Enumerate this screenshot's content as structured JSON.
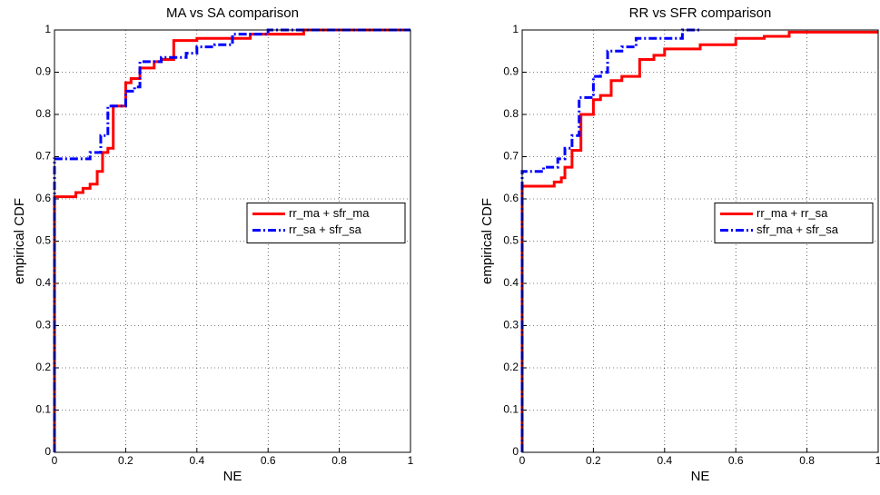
{
  "chart_data": [
    {
      "type": "line",
      "title": "MA vs SA comparison",
      "xlabel": "NE",
      "ylabel": "empirical CDF",
      "xlim": [
        0,
        1
      ],
      "ylim": [
        0,
        1
      ],
      "xticks": [
        0,
        0.2,
        0.4,
        0.6,
        0.8,
        1
      ],
      "yticks": [
        0,
        0.1,
        0.2,
        0.3,
        0.4,
        0.5,
        0.6,
        0.7,
        0.8,
        0.9,
        1
      ],
      "grid": true,
      "legend": "east",
      "series": [
        {
          "name": "rr_ma + sfr_ma",
          "color": "#ff0000",
          "dash": "solid",
          "x": [
            0,
            0,
            0.06,
            0.06,
            0.08,
            0.08,
            0.1,
            0.1,
            0.12,
            0.12,
            0.135,
            0.135,
            0.15,
            0.15,
            0.165,
            0.165,
            0.2,
            0.2,
            0.215,
            0.215,
            0.24,
            0.24,
            0.28,
            0.28,
            0.3,
            0.3,
            0.335,
            0.335,
            0.4,
            0.4,
            0.55,
            0.55,
            0.7,
            0.7,
            1
          ],
          "y": [
            0,
            0.605,
            0.605,
            0.615,
            0.615,
            0.625,
            0.625,
            0.635,
            0.635,
            0.665,
            0.665,
            0.71,
            0.71,
            0.72,
            0.72,
            0.82,
            0.82,
            0.875,
            0.875,
            0.885,
            0.885,
            0.91,
            0.91,
            0.925,
            0.925,
            0.93,
            0.93,
            0.975,
            0.975,
            0.98,
            0.98,
            0.99,
            0.99,
            1,
            1
          ]
        },
        {
          "name": "rr_sa + sfr_sa",
          "color": "#0000ff",
          "dash": "dashdot",
          "x": [
            0,
            0,
            0.1,
            0.1,
            0.13,
            0.13,
            0.15,
            0.15,
            0.2,
            0.2,
            0.225,
            0.225,
            0.24,
            0.24,
            0.3,
            0.3,
            0.37,
            0.37,
            0.4,
            0.4,
            0.45,
            0.45,
            0.5,
            0.5,
            0.6,
            0.6,
            1
          ],
          "y": [
            0,
            0.695,
            0.695,
            0.71,
            0.71,
            0.75,
            0.75,
            0.82,
            0.82,
            0.855,
            0.855,
            0.865,
            0.865,
            0.925,
            0.925,
            0.935,
            0.935,
            0.945,
            0.945,
            0.96,
            0.96,
            0.965,
            0.965,
            0.99,
            0.99,
            1,
            1
          ]
        }
      ]
    },
    {
      "type": "line",
      "title": "RR vs SFR comparison",
      "xlabel": "NE",
      "ylabel": "empirical CDF",
      "xlim": [
        0,
        1
      ],
      "ylim": [
        0,
        1
      ],
      "xticks": [
        0,
        0.2,
        0.4,
        0.6,
        0.8,
        1
      ],
      "yticks": [
        0,
        0.1,
        0.2,
        0.3,
        0.4,
        0.5,
        0.6,
        0.7,
        0.8,
        0.9,
        1
      ],
      "grid": true,
      "legend": "east",
      "series": [
        {
          "name": "rr_ma + rr_sa",
          "color": "#ff0000",
          "dash": "solid",
          "x": [
            0,
            0,
            0.09,
            0.09,
            0.11,
            0.11,
            0.12,
            0.12,
            0.14,
            0.14,
            0.165,
            0.165,
            0.2,
            0.2,
            0.22,
            0.22,
            0.25,
            0.25,
            0.28,
            0.28,
            0.33,
            0.33,
            0.37,
            0.37,
            0.4,
            0.4,
            0.5,
            0.5,
            0.6,
            0.6,
            0.68,
            0.68,
            0.75,
            0.75,
            1
          ],
          "y": [
            0,
            0.63,
            0.63,
            0.64,
            0.64,
            0.65,
            0.65,
            0.675,
            0.675,
            0.715,
            0.715,
            0.8,
            0.8,
            0.835,
            0.835,
            0.845,
            0.845,
            0.88,
            0.88,
            0.89,
            0.89,
            0.93,
            0.93,
            0.94,
            0.94,
            0.955,
            0.955,
            0.965,
            0.965,
            0.98,
            0.98,
            0.985,
            0.985,
            0.995,
            0.995
          ]
        },
        {
          "name": "sfr_ma + sfr_sa",
          "color": "#0000ff",
          "dash": "dashdot",
          "x": [
            0,
            0,
            0.06,
            0.06,
            0.1,
            0.1,
            0.12,
            0.12,
            0.14,
            0.14,
            0.16,
            0.16,
            0.2,
            0.2,
            0.22,
            0.22,
            0.24,
            0.24,
            0.28,
            0.28,
            0.32,
            0.32,
            0.45,
            0.45,
            0.5
          ],
          "y": [
            0,
            0.665,
            0.665,
            0.675,
            0.675,
            0.695,
            0.695,
            0.72,
            0.72,
            0.75,
            0.75,
            0.84,
            0.84,
            0.89,
            0.89,
            0.9,
            0.9,
            0.95,
            0.95,
            0.96,
            0.96,
            0.98,
            0.98,
            1,
            1
          ]
        }
      ]
    }
  ]
}
